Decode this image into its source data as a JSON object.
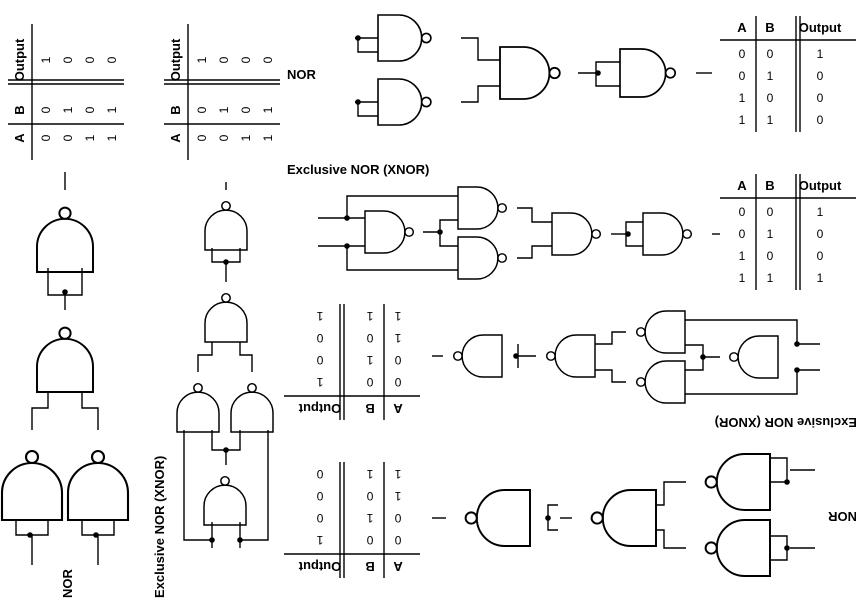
{
  "labels": {
    "nor": "NOR",
    "xnor": "Exclusive NOR (XNOR)"
  },
  "truth_tables": {
    "nor": {
      "headers": [
        "A",
        "B",
        "Output"
      ],
      "rows": [
        [
          "0",
          "0",
          "1"
        ],
        [
          "0",
          "1",
          "0"
        ],
        [
          "1",
          "0",
          "0"
        ],
        [
          "1",
          "1",
          "0"
        ]
      ]
    },
    "xnor": {
      "headers": [
        "A",
        "B",
        "Output"
      ],
      "rows": [
        [
          "0",
          "0",
          "1"
        ],
        [
          "0",
          "1",
          "0"
        ],
        [
          "1",
          "0",
          "0"
        ],
        [
          "1",
          "1",
          "1"
        ]
      ]
    }
  }
}
